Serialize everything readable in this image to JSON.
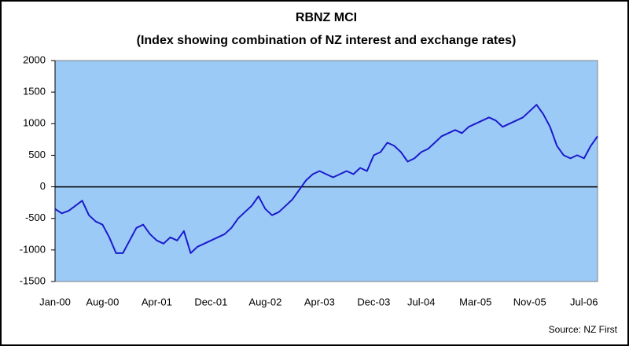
{
  "chart_data": {
    "type": "line",
    "title": "RBNZ MCI",
    "subtitle": "(Index showing combination of NZ interest and exchange rates)",
    "source": "Source: NZ First",
    "categories": [
      "Jan-00",
      null,
      null,
      null,
      null,
      null,
      null,
      "Aug-00",
      null,
      null,
      null,
      null,
      null,
      null,
      null,
      "Apr-01",
      null,
      null,
      null,
      null,
      null,
      null,
      null,
      "Dec-01",
      null,
      null,
      null,
      null,
      null,
      null,
      null,
      "Aug-02",
      null,
      null,
      null,
      null,
      null,
      null,
      null,
      "Apr-03",
      null,
      null,
      null,
      null,
      null,
      null,
      null,
      "Dec-03",
      null,
      null,
      null,
      null,
      null,
      null,
      "Jul-04",
      null,
      null,
      null,
      null,
      null,
      null,
      null,
      "Mar-05",
      null,
      null,
      null,
      null,
      null,
      null,
      null,
      "Nov-05",
      null,
      null,
      null,
      null,
      null,
      null,
      null,
      "Jul-06",
      null,
      null
    ],
    "series": [
      {
        "name": "MCI",
        "color": "#1a1acc",
        "values": [
          -350,
          -420,
          -380,
          -300,
          -220,
          -450,
          -550,
          -600,
          -800,
          -1050,
          -1050,
          -850,
          -650,
          -600,
          -750,
          -850,
          -900,
          -800,
          -850,
          -700,
          -1050,
          -950,
          -900,
          -850,
          -800,
          -750,
          -650,
          -500,
          -400,
          -300,
          -150,
          -350,
          -450,
          -400,
          -300,
          -200,
          -50,
          100,
          200,
          250,
          200,
          150,
          200,
          250,
          200,
          300,
          250,
          500,
          550,
          700,
          650,
          550,
          400,
          450,
          550,
          600,
          700,
          800,
          850,
          900,
          850,
          950,
          1000,
          1050,
          1100,
          1050,
          950,
          1000,
          1050,
          1100,
          1200,
          1300,
          1150,
          950,
          650,
          500,
          450,
          500,
          450,
          650,
          800
        ]
      }
    ],
    "ylim": [
      -1500,
      2000
    ],
    "yticks": [
      -1500,
      -1000,
      -500,
      0,
      500,
      1000,
      1500,
      2000
    ],
    "plot_color": "#9ccaf6"
  }
}
